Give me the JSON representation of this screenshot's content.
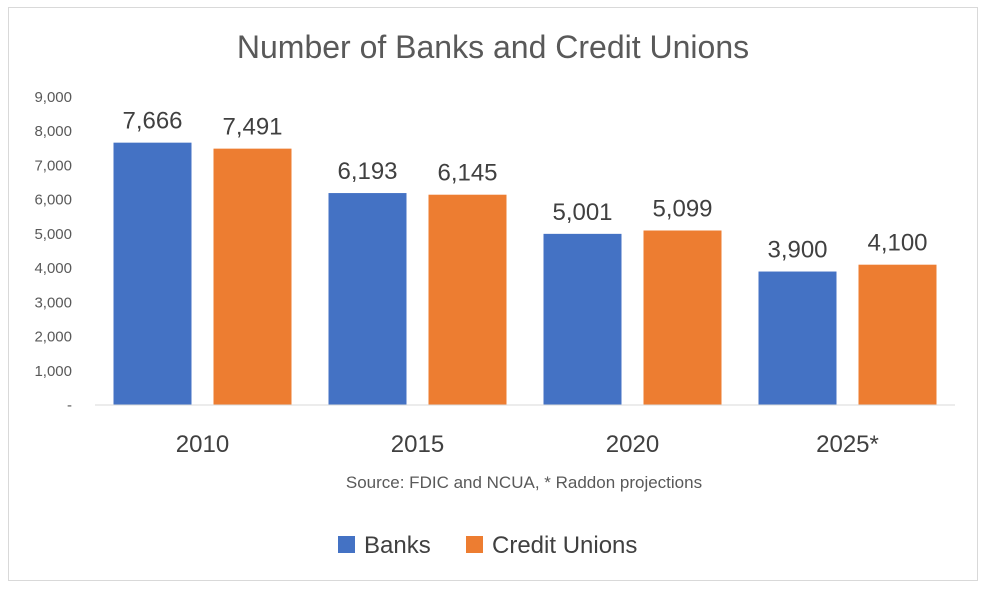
{
  "chart_data": {
    "type": "bar",
    "title": "Number of Banks and Credit Unions",
    "categories": [
      "2010",
      "2015",
      "2020",
      "2025*"
    ],
    "series": [
      {
        "name": "Banks",
        "values": [
          7666,
          6193,
          5001,
          3900
        ],
        "labels": [
          "7,666",
          "6,193",
          "5,001",
          "3,900"
        ],
        "color": "#4472c4"
      },
      {
        "name": "Credit Unions",
        "values": [
          7491,
          6145,
          5099,
          4100
        ],
        "labels": [
          "7,491",
          "6,145",
          "5,099",
          "4,100"
        ],
        "color": "#ed7d31"
      }
    ],
    "yticks": [
      0,
      1000,
      2000,
      3000,
      4000,
      5000,
      6000,
      7000,
      8000,
      9000
    ],
    "ytick_labels": [
      "-",
      "1,000",
      "2,000",
      "3,000",
      "4,000",
      "5,000",
      "6,000",
      "7,000",
      "8,000",
      "9,000"
    ],
    "ylim": [
      0,
      9000
    ],
    "grid": false,
    "legend_position": "bottom",
    "source_note": "Source: FDIC and NCUA, * Raddon projections"
  }
}
